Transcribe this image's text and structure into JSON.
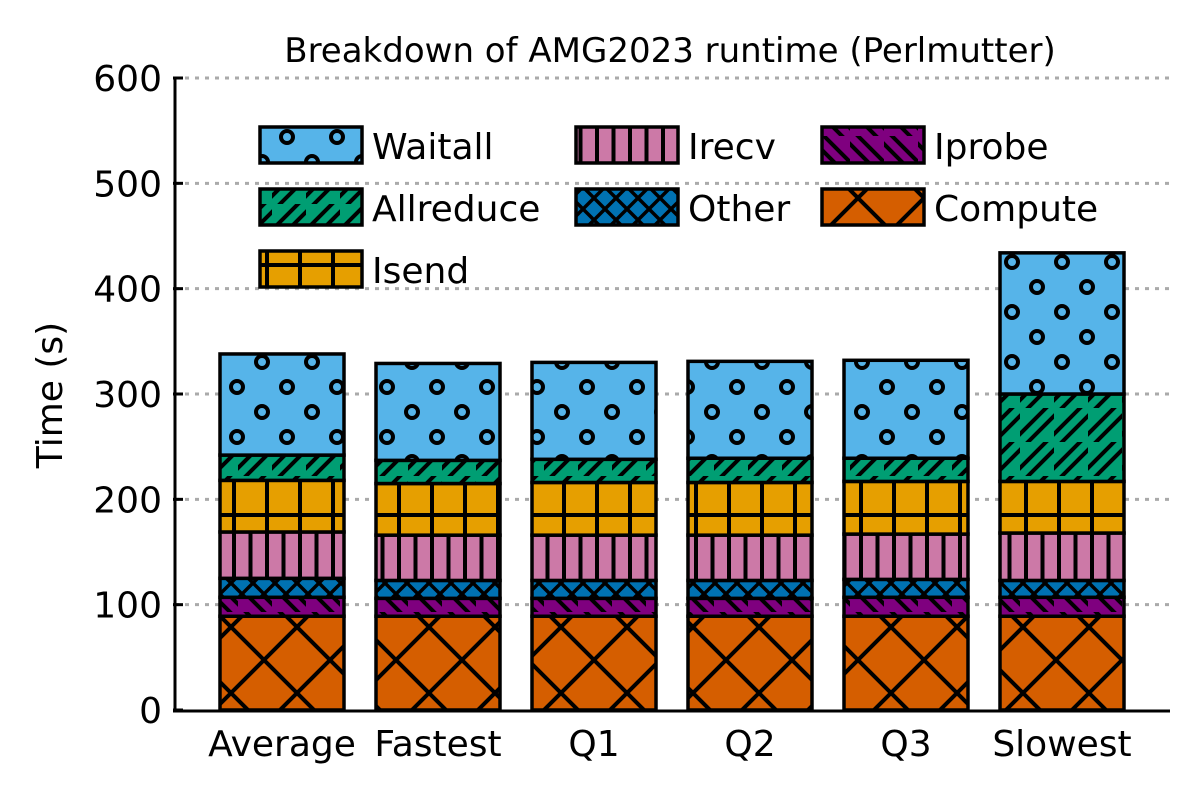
{
  "chart_data": {
    "type": "bar",
    "stacked": true,
    "title": "Breakdown of AMG2023 runtime (Perlmutter)",
    "xlabel": "",
    "ylabel": "Time (s)",
    "ylim": [
      0,
      600
    ],
    "yticks": [
      "0",
      "100",
      "200",
      "300",
      "400",
      "500",
      "600"
    ],
    "grid": "horizontal dotted",
    "legend_placement": "top, inside plot",
    "categories": [
      "Average",
      "Fastest",
      "Q1",
      "Q2",
      "Q3",
      "Slowest"
    ],
    "series": [
      {
        "name": "Compute",
        "color": "#D55E00",
        "pattern": "crosshatch-diagonal",
        "values": [
          89,
          89,
          89,
          89,
          89,
          89
        ]
      },
      {
        "name": "Iprobe",
        "color": "#7F007F",
        "pattern": "backslash",
        "values": [
          18,
          17,
          17,
          17,
          18,
          18
        ]
      },
      {
        "name": "Other",
        "color": "#0072B2",
        "pattern": "dense-crosshatch",
        "values": [
          18,
          17,
          17,
          17,
          17,
          16
        ]
      },
      {
        "name": "Irecv",
        "color": "#CC79A7",
        "pattern": "vertical-lines",
        "values": [
          44,
          43,
          43,
          43,
          43,
          45
        ]
      },
      {
        "name": "Isend",
        "color": "#E69F00",
        "pattern": "grid",
        "values": [
          49,
          49,
          50,
          50,
          50,
          49
        ]
      },
      {
        "name": "Allreduce",
        "color": "#009E73",
        "pattern": "slash",
        "values": [
          24,
          22,
          22,
          23,
          22,
          83
        ]
      },
      {
        "name": "Waitall",
        "color": "#56B4E9",
        "pattern": "circles",
        "values": [
          96,
          92,
          92,
          92,
          93,
          134
        ]
      }
    ],
    "legend_order": [
      "Waitall",
      "Irecv",
      "Iprobe",
      "Allreduce",
      "Other",
      "Compute",
      "Isend"
    ]
  }
}
